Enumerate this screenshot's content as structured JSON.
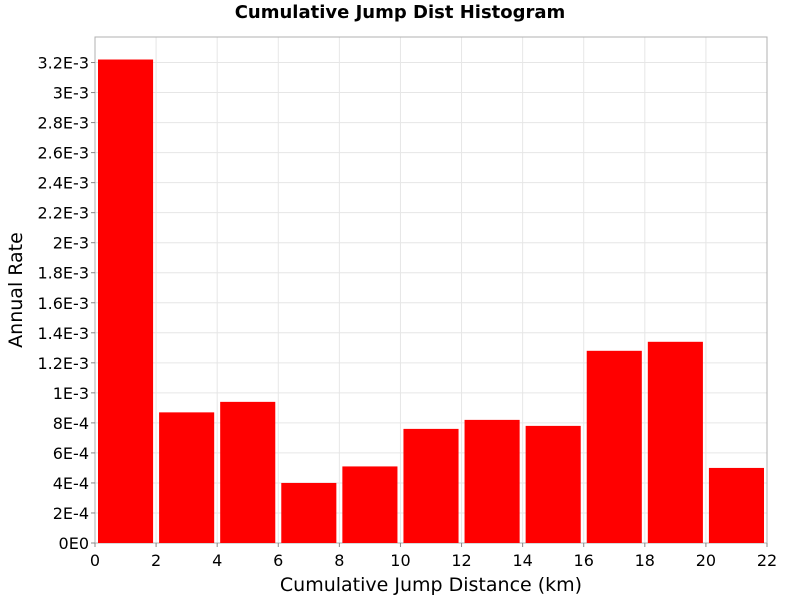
{
  "chart_data": {
    "type": "bar",
    "title": "Cumulative Jump Dist Histogram",
    "xlabel": "Cumulative Jump Distance (km)",
    "ylabel": "Annual Rate",
    "xlim": [
      0,
      22
    ],
    "ylim": [
      0,
      0.00337
    ],
    "grid": true,
    "colors": {
      "bar": "#ff0000",
      "grid": "#e6e6e6",
      "frame": "#b0b0b0",
      "background": "#ffffff"
    },
    "x_ticks": [
      "0",
      "2",
      "4",
      "6",
      "8",
      "10",
      "12",
      "14",
      "16",
      "18",
      "20",
      "22"
    ],
    "y_ticks": [
      "0E0",
      "2E-4",
      "4E-4",
      "6E-4",
      "8E-4",
      "1E-3",
      "1.2E-3",
      "1.4E-3",
      "1.6E-3",
      "1.8E-3",
      "2E-3",
      "2.2E-3",
      "2.4E-3",
      "2.6E-3",
      "2.8E-3",
      "3E-3",
      "3.2E-3"
    ],
    "bins": [
      {
        "x0": 0,
        "x1": 2,
        "value": 0.00322
      },
      {
        "x0": 2,
        "x1": 4,
        "value": 0.00087
      },
      {
        "x0": 4,
        "x1": 6,
        "value": 0.00094
      },
      {
        "x0": 6,
        "x1": 8,
        "value": 0.0004
      },
      {
        "x0": 8,
        "x1": 10,
        "value": 0.00051
      },
      {
        "x0": 10,
        "x1": 12,
        "value": 0.00076
      },
      {
        "x0": 12,
        "x1": 14,
        "value": 0.00082
      },
      {
        "x0": 14,
        "x1": 16,
        "value": 0.00078
      },
      {
        "x0": 16,
        "x1": 18,
        "value": 0.00128
      },
      {
        "x0": 18,
        "x1": 20,
        "value": 0.00134
      },
      {
        "x0": 20,
        "x1": 22,
        "value": 0.0005
      }
    ]
  }
}
